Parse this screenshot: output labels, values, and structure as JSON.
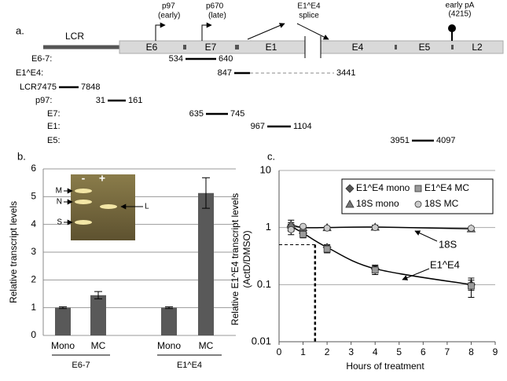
{
  "panel_a": {
    "label": "a.",
    "lcr": "LCR",
    "exons": [
      "E6",
      "E7",
      "E1",
      "E4",
      "E5",
      "L2"
    ],
    "promoters": [
      {
        "name": "p97",
        "note": "(early)"
      },
      {
        "name": "p670",
        "note": "(late)"
      }
    ],
    "splice": [
      "E1^E4",
      "splice"
    ],
    "polya": [
      "early pA",
      "(4215)"
    ],
    "amplicons": [
      {
        "name": "E6-7:",
        "start": 534,
        "end": 640
      },
      {
        "name": "E1^E4:",
        "start": 847,
        "end": 3441
      },
      {
        "name": "LCR:",
        "start": 7475,
        "end": 7848
      },
      {
        "name": "p97:",
        "start": 31,
        "end": 161
      },
      {
        "name": "E7:",
        "start": 635,
        "end": 745
      },
      {
        "name": "E1:",
        "start": 967,
        "end": 1104
      },
      {
        "name": "E5:",
        "start": 3951,
        "end": 4097
      }
    ]
  },
  "chart_data": [
    {
      "type": "bar",
      "panel_label": "b.",
      "y_label": "Relative transcript levels",
      "categories": [
        "Mono",
        "MC",
        "Mono",
        "MC"
      ],
      "groups": [
        "E6-7",
        "E1^E4"
      ],
      "values": [
        1,
        1.45,
        1,
        5.13
      ],
      "errors": [
        0.03,
        0.13,
        0.03,
        0.55
      ],
      "color": "#595959",
      "ylim": [
        0,
        6
      ],
      "yticks": [
        0,
        1,
        2,
        3,
        4,
        5,
        6
      ],
      "grid": true,
      "inset": {
        "lanes": [
          "-",
          "+"
        ],
        "bands": [
          "M",
          "N",
          "S",
          "L"
        ]
      }
    },
    {
      "type": "line",
      "panel_label": "c.",
      "y_label": [
        "Relative E1^E4 transcript levels",
        "(ActD/DMSO)"
      ],
      "x_label": "Hours of treatment",
      "log_y": true,
      "grid": true,
      "xlim": [
        0,
        9
      ],
      "xticks": [
        0,
        1,
        2,
        3,
        4,
        5,
        6,
        7,
        8,
        9
      ],
      "ylim": [
        0.01,
        10
      ],
      "yticks": [
        0.01,
        0.1,
        1,
        10
      ],
      "x": [
        0.5,
        1,
        2,
        4,
        8
      ],
      "series": [
        {
          "name": "E1^E4 mono",
          "marker": "diamond",
          "color": "#555555",
          "values": [
            1.05,
            0.8,
            0.45,
            0.19,
            0.1
          ],
          "errors": [
            0.3,
            0.08,
            0.05,
            0.03,
            0.02
          ]
        },
        {
          "name": "E1^E4 MC",
          "marker": "square",
          "color": "#9a9a9a",
          "values": [
            1.0,
            0.76,
            0.42,
            0.18,
            0.095
          ],
          "errors": [
            0.15,
            0.1,
            0.06,
            0.03,
            0.035
          ]
        },
        {
          "name": "18S mono",
          "marker": "triangle",
          "color": "#777777",
          "values": [
            1.12,
            1.0,
            1.0,
            1.02,
            0.95
          ],
          "errors": [
            0.1,
            0.05,
            0.05,
            0.08,
            0.05
          ]
        },
        {
          "name": "18S MC",
          "marker": "circle",
          "color": "#cccccc",
          "values": [
            0.92,
            1.05,
            0.98,
            1.0,
            0.97
          ],
          "errors": [
            0.05,
            0.05,
            0.05,
            0.06,
            0.05
          ]
        }
      ],
      "annotations": [
        "18S",
        "E1^E4"
      ],
      "half_life": {
        "x": 1.5,
        "y": 0.5
      }
    }
  ]
}
